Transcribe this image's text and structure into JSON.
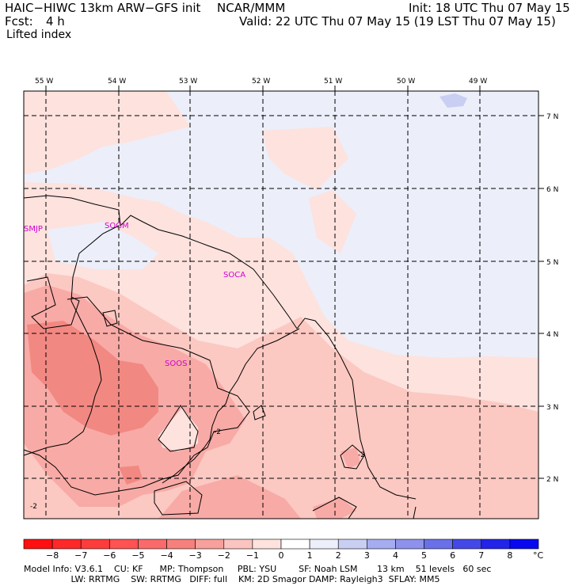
{
  "header": {
    "model": "HAIC−HIWC 13km ARW−GFS init",
    "org": "NCAR/MMM",
    "init": "Init: 18 UTC Thu 07 May 15",
    "fcst_label": "Fcst:",
    "fcst_value": "4 h",
    "valid": "Valid: 22 UTC Thu 07 May 15 (19 LST Thu 07 May 15)",
    "field": "Lifted index"
  },
  "map": {
    "lon_labels": [
      "55 W",
      "54 W",
      "53 W",
      "52 W",
      "51 W",
      "50 W",
      "49 W"
    ],
    "lat_labels": [
      "7 N",
      "6 N",
      "5 N",
      "4 N",
      "3 N",
      "2 N"
    ],
    "stations": [
      "SMJP",
      "SOGM",
      "SOCA",
      "SOOS"
    ],
    "contour_labels": [
      "-2",
      "-2",
      "-2"
    ],
    "colors": {
      "neg1": "#fde2de",
      "neg2": "#fcc8c2",
      "neg3": "#f8aaa6",
      "neg4": "#f28882",
      "pos1": "#eceef9",
      "pos2": "#c9cef3",
      "station": "#d000d0"
    }
  },
  "colorbar": {
    "ticks": [
      "−8",
      "−7",
      "−6",
      "−5",
      "−4",
      "−3",
      "−2",
      "−1",
      "0",
      "1",
      "2",
      "3",
      "4",
      "5",
      "6",
      "7",
      "8"
    ],
    "unit": "°C",
    "colors": [
      "#ff1010",
      "#ff2828",
      "#ff3c3c",
      "#ff5252",
      "#fb6a6a",
      "#f8807c",
      "#f8a09c",
      "#fbc4c0",
      "#fde2de",
      "#ffffff",
      "#eceef9",
      "#c9cef3",
      "#a6acf0",
      "#8e92ec",
      "#6a70e8",
      "#4448e6",
      "#2224ea",
      "#0808f0"
    ]
  },
  "footer": {
    "line1": "Model Info: V3.6.1    CU: KF      MP: Thompson     PBL: YSU        SF: Noah LSM       13 km    51 levels   60 sec",
    "line2": "                 LW: RRTMG    SW: RRTMG   DIFF: full    KM: 2D Smagor DAMP: Rayleigh3  SFLAY: MM5"
  }
}
